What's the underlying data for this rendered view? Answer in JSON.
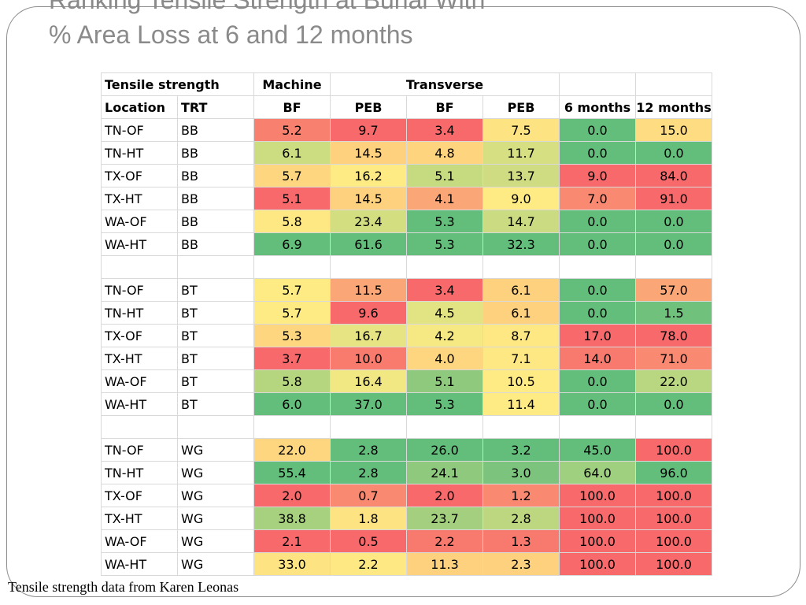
{
  "slide": {
    "title_line1": "Ranking Tensile Strength at Burial With",
    "title_line2": "% Area Loss at 6 and 12 months",
    "footer": "Tensile strength data from Karen Leonas"
  },
  "table": {
    "header1": [
      "Tensile strength",
      "",
      "Machine",
      "Transverse",
      "",
      ""
    ],
    "header2": [
      "Location",
      "TRT",
      "BF",
      "PEB",
      "BF",
      "PEB",
      "6 months",
      "12 months"
    ],
    "rows": [
      {
        "cells": [
          "TN-OF",
          "BB",
          "5.2",
          "9.7",
          "3.4",
          "7.5",
          "0.0",
          "15.0"
        ],
        "colors": [
          "#f8806e",
          "#f8696b",
          "#f8696b",
          "#fee382",
          "#63be7b",
          "#fedc81"
        ]
      },
      {
        "cells": [
          "TN-HT",
          "BB",
          "6.1",
          "14.5",
          "4.8",
          "11.7",
          "0.0",
          "0.0"
        ],
        "colors": [
          "#cbdc81",
          "#fed17f",
          "#fed47f",
          "#d6df81",
          "#63be7b",
          "#63be7b"
        ]
      },
      {
        "cells": [
          "TX-OF",
          "BB",
          "5.7",
          "16.2",
          "5.1",
          "13.7",
          "9.0",
          "84.0"
        ],
        "colors": [
          "#fed680",
          "#ffeb84",
          "#c6da80",
          "#cfdc81",
          "#f8696b",
          "#f8696b"
        ]
      },
      {
        "cells": [
          "TX-HT",
          "BB",
          "5.1",
          "14.5",
          "4.1",
          "9.0",
          "7.0",
          "91.0"
        ],
        "colors": [
          "#f8696b",
          "#fed17f",
          "#fba677",
          "#ffeb84",
          "#f98a71",
          "#f8696b"
        ]
      },
      {
        "cells": [
          "WA-OF",
          "BB",
          "5.8",
          "23.4",
          "5.3",
          "14.7",
          "0.0",
          "0.0"
        ],
        "colors": [
          "#fee883",
          "#d3de81",
          "#63be7b",
          "#cbdb81",
          "#63be7b",
          "#63be7b"
        ]
      },
      {
        "cells": [
          "WA-HT",
          "BB",
          "6.9",
          "61.6",
          "5.3",
          "32.3",
          "0.0",
          "0.0"
        ],
        "colors": [
          "#63be7b",
          "#63be7b",
          "#63be7b",
          "#63be7b",
          "#63be7b",
          "#63be7b"
        ]
      },
      {
        "cells": [
          "",
          "",
          "",
          "",
          "",
          "",
          "",
          ""
        ],
        "colors": [
          "#ffffff",
          "#ffffff",
          "#ffffff",
          "#ffffff",
          "#ffffff",
          "#ffffff"
        ]
      },
      {
        "cells": [
          "TN-OF",
          "BT",
          "5.7",
          "11.5",
          "3.4",
          "6.1",
          "0.0",
          "57.0"
        ],
        "colors": [
          "#ffeb84",
          "#fba677",
          "#f8696b",
          "#fed17f",
          "#63be7b",
          "#fba677"
        ]
      },
      {
        "cells": [
          "TN-HT",
          "BT",
          "5.7",
          "9.6",
          "4.5",
          "6.1",
          "0.0",
          "1.5"
        ],
        "colors": [
          "#ffeb84",
          "#f8696b",
          "#e2e382",
          "#fed17f",
          "#63be7b",
          "#70c17c"
        ]
      },
      {
        "cells": [
          "TX-OF",
          "BT",
          "5.3",
          "16.7",
          "4.2",
          "8.7",
          "17.0",
          "78.0"
        ],
        "colors": [
          "#fed680",
          "#e6e483",
          "#f6e883",
          "#fee883",
          "#f8696b",
          "#f8696b"
        ]
      },
      {
        "cells": [
          "TX-HT",
          "BT",
          "3.7",
          "10.0",
          "4.0",
          "7.1",
          "14.0",
          "71.0"
        ],
        "colors": [
          "#f8696b",
          "#f97b6d",
          "#fed680",
          "#fee883",
          "#f8796d",
          "#f98a71"
        ]
      },
      {
        "cells": [
          "WA-OF",
          "BT",
          "5.8",
          "16.4",
          "5.1",
          "10.5",
          "0.0",
          "22.0"
        ],
        "colors": [
          "#b6d57f",
          "#f1e783",
          "#8ec97e",
          "#ffeb84",
          "#63be7b",
          "#b9d680"
        ]
      },
      {
        "cells": [
          "WA-HT",
          "BT",
          "6.0",
          "37.0",
          "5.3",
          "11.4",
          "0.0",
          "0.0"
        ],
        "colors": [
          "#63be7b",
          "#63be7b",
          "#63be7b",
          "#ffeb84",
          "#63be7b",
          "#63be7b"
        ]
      },
      {
        "cells": [
          "",
          "",
          "",
          "",
          "",
          "",
          "",
          ""
        ],
        "colors": [
          "#ffffff",
          "#ffffff",
          "#ffffff",
          "#ffffff",
          "#ffffff",
          "#ffffff"
        ]
      },
      {
        "cells": [
          "TN-OF",
          "WG",
          "22.0",
          "2.8",
          "26.0",
          "3.2",
          "45.0",
          "100.0"
        ],
        "colors": [
          "#fed680",
          "#63be7b",
          "#63be7b",
          "#63be7b",
          "#63be7b",
          "#f8696b"
        ]
      },
      {
        "cells": [
          "TN-HT",
          "WG",
          "55.4",
          "2.8",
          "24.1",
          "3.0",
          "64.0",
          "96.0"
        ],
        "colors": [
          "#63be7b",
          "#63be7b",
          "#8ec97e",
          "#7cc37d",
          "#9ed07f",
          "#63be7b"
        ]
      },
      {
        "cells": [
          "TX-OF",
          "WG",
          "2.0",
          "0.7",
          "2.0",
          "1.2",
          "100.0",
          "100.0"
        ],
        "colors": [
          "#f8696b",
          "#f98a71",
          "#f8696b",
          "#f98a71",
          "#f8696b",
          "#f8696b"
        ]
      },
      {
        "cells": [
          "TX-HT",
          "WG",
          "38.8",
          "1.8",
          "23.7",
          "2.8",
          "100.0",
          "100.0"
        ],
        "colors": [
          "#a8d17f",
          "#fee382",
          "#a3cf7f",
          "#bdd780",
          "#f8696b",
          "#f8696b"
        ]
      },
      {
        "cells": [
          "WA-OF",
          "WG",
          "2.1",
          "0.5",
          "2.2",
          "1.3",
          "100.0",
          "100.0"
        ],
        "colors": [
          "#f8696b",
          "#f8696b",
          "#f8796d",
          "#f8796d",
          "#f8696b",
          "#f8696b"
        ]
      },
      {
        "cells": [
          "WA-HT",
          "WG",
          "33.0",
          "2.2",
          "11.3",
          "2.3",
          "100.0",
          "100.0"
        ],
        "colors": [
          "#fee382",
          "#fee883",
          "#fed17f",
          "#fed17f",
          "#f8696b",
          "#f8696b"
        ]
      }
    ]
  }
}
